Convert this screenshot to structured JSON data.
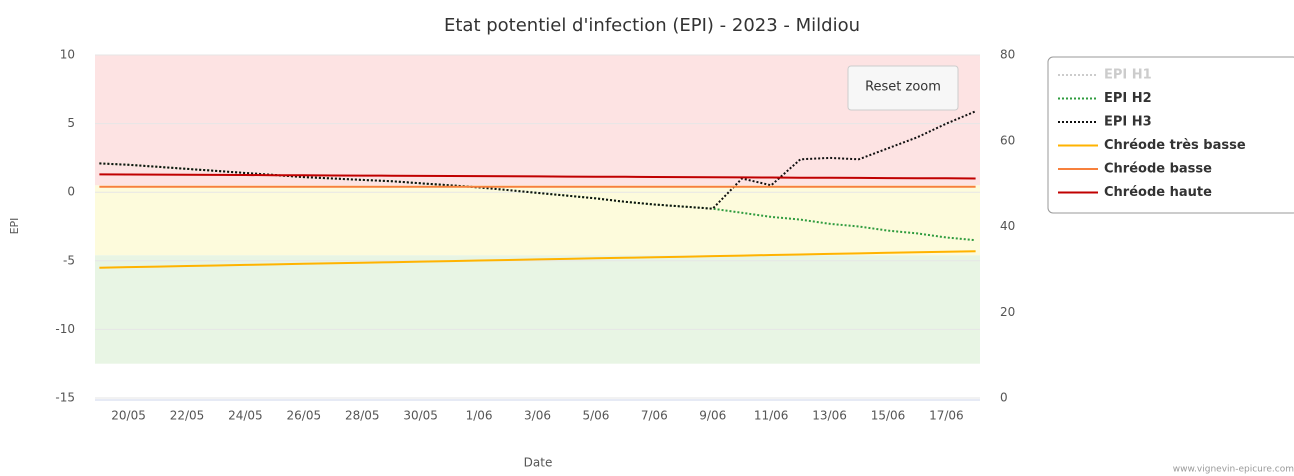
{
  "chart_data": {
    "type": "line",
    "title": "Etat potentiel d'infection (EPI) - 2023 - Mildiou",
    "y_label": "EPI",
    "x_label": "Date",
    "reset_button": "Reset zoom",
    "watermark": "www.vignevin-epicure.com",
    "categories": [
      null,
      "20/05",
      null,
      "22/05",
      null,
      "24/05",
      null,
      "26/05",
      null,
      "28/05",
      null,
      "30/05",
      null,
      "1/06",
      null,
      "3/06",
      null,
      "5/06",
      null,
      "7/06",
      null,
      "9/06",
      null,
      "11/06",
      null,
      "13/06",
      null,
      "15/06",
      null,
      "17/06",
      null
    ],
    "ylim": [
      -15,
      10
    ],
    "yticks": [
      -15,
      -10,
      -5,
      0,
      5,
      10
    ],
    "y2lim": [
      0,
      80
    ],
    "y2ticks": [
      0,
      20,
      40,
      60,
      80
    ],
    "grid": true,
    "legend": "right",
    "bands": [
      {
        "from": 0.5,
        "to": 10,
        "color": "#fde3e3"
      },
      {
        "from": -4.6,
        "to": 0.5,
        "color": "#fdfbdc"
      },
      {
        "from": -12.5,
        "to": -4.6,
        "color": "#e8f5e4"
      }
    ],
    "series": [
      {
        "name": "EPI H1",
        "color": "#cccccc",
        "dash": "dotted",
        "visible": false,
        "values": [
          null,
          null,
          null,
          null,
          null,
          null,
          null,
          null,
          null,
          null,
          null,
          null,
          null,
          null,
          null,
          null,
          null,
          null,
          null,
          null,
          null,
          null,
          null,
          null,
          null,
          null,
          null,
          null,
          null,
          null,
          null
        ]
      },
      {
        "name": "EPI H2",
        "color": "#2e9b3e",
        "dash": "dotted",
        "visible": true,
        "values": [
          2.1,
          2.0,
          1.85,
          1.7,
          1.55,
          1.4,
          1.25,
          1.1,
          1.0,
          0.9,
          0.8,
          0.65,
          0.5,
          0.35,
          0.15,
          -0.05,
          -0.25,
          -0.45,
          -0.7,
          -0.9,
          -1.05,
          -1.2,
          -1.5,
          -1.8,
          -2.0,
          -2.3,
          -2.5,
          -2.8,
          -3.0,
          -3.3,
          -3.5
        ]
      },
      {
        "name": "EPI H3",
        "color": "#111111",
        "dash": "dotted",
        "visible": true,
        "values": [
          2.1,
          2.0,
          1.85,
          1.7,
          1.55,
          1.4,
          1.25,
          1.1,
          1.0,
          0.9,
          0.8,
          0.65,
          0.5,
          0.35,
          0.15,
          -0.05,
          -0.25,
          -0.45,
          -0.7,
          -0.9,
          -1.05,
          -1.2,
          1.0,
          0.5,
          2.4,
          2.5,
          2.4,
          3.2,
          4.0,
          5.0,
          5.9
        ]
      },
      {
        "name": "Chréode très basse",
        "color": "#ffb300",
        "dash": "solid",
        "visible": true,
        "values": [
          -5.5,
          -5.46,
          -5.42,
          -5.38,
          -5.34,
          -5.3,
          -5.26,
          -5.22,
          -5.18,
          -5.14,
          -5.1,
          -5.06,
          -5.02,
          -4.98,
          -4.94,
          -4.9,
          -4.86,
          -4.82,
          -4.78,
          -4.74,
          -4.7,
          -4.66,
          -4.62,
          -4.58,
          -4.54,
          -4.5,
          -4.46,
          -4.42,
          -4.38,
          -4.34,
          -4.3
        ]
      },
      {
        "name": "Chréode basse",
        "color": "#f7803c",
        "dash": "solid",
        "visible": true,
        "values": [
          0.4,
          0.4,
          0.4,
          0.4,
          0.4,
          0.4,
          0.4,
          0.4,
          0.4,
          0.4,
          0.4,
          0.4,
          0.4,
          0.4,
          0.4,
          0.4,
          0.4,
          0.4,
          0.4,
          0.4,
          0.4,
          0.4,
          0.4,
          0.4,
          0.4,
          0.4,
          0.4,
          0.4,
          0.4,
          0.4,
          0.4
        ]
      },
      {
        "name": "Chréode haute",
        "color": "#c00000",
        "dash": "solid",
        "visible": true,
        "values": [
          1.3,
          1.29,
          1.28,
          1.27,
          1.26,
          1.25,
          1.24,
          1.23,
          1.22,
          1.21,
          1.2,
          1.19,
          1.18,
          1.17,
          1.16,
          1.15,
          1.14,
          1.13,
          1.12,
          1.11,
          1.1,
          1.09,
          1.08,
          1.07,
          1.06,
          1.05,
          1.04,
          1.03,
          1.02,
          1.01,
          1.0
        ]
      }
    ]
  }
}
